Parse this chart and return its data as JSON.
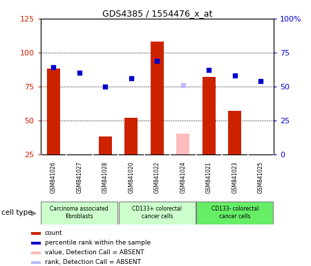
{
  "title": "GDS4385 / 1554476_x_at",
  "samples": [
    "GSM841026",
    "GSM841027",
    "GSM841028",
    "GSM841020",
    "GSM841022",
    "GSM841024",
    "GSM841021",
    "GSM841023",
    "GSM841025"
  ],
  "count_values": [
    88,
    null,
    38,
    52,
    108,
    null,
    82,
    57,
    null
  ],
  "count_absent": [
    null,
    null,
    null,
    null,
    null,
    40,
    null,
    null,
    null
  ],
  "rank_values": [
    64,
    60,
    50,
    56,
    69,
    null,
    62,
    58,
    54
  ],
  "rank_absent": [
    null,
    null,
    null,
    null,
    null,
    51,
    null,
    null,
    null
  ],
  "groups": [
    {
      "label": "Carcinoma associated\nfibroblasts",
      "start": 0,
      "end": 3,
      "color": "#ccffcc"
    },
    {
      "label": "CD133+ colorectal\ncancer cells",
      "start": 3,
      "end": 6,
      "color": "#ccffcc"
    },
    {
      "label": "CD133- colorectal\ncancer cells",
      "start": 6,
      "end": 9,
      "color": "#66ee66"
    }
  ],
  "ylim_left": [
    25,
    125
  ],
  "ylim_right": [
    0,
    100
  ],
  "yticks_left": [
    25,
    50,
    75,
    100,
    125
  ],
  "yticks_right": [
    0,
    25,
    50,
    75,
    100
  ],
  "ytick_labels_right": [
    "0",
    "25",
    "50",
    "75",
    "100%"
  ],
  "bar_width": 0.5,
  "count_color": "#cc2200",
  "rank_color": "#0000cc",
  "absent_count_color": "#ffbbbb",
  "absent_rank_color": "#bbbbff",
  "sample_bg_color": "#d8d8d8",
  "plot_bg": "#ffffff",
  "cell_type_label": "cell type",
  "legend_items": [
    {
      "color": "#cc2200",
      "label": "count"
    },
    {
      "color": "#0000cc",
      "label": "percentile rank within the sample"
    },
    {
      "color": "#ffbbbb",
      "label": "value, Detection Call = ABSENT"
    },
    {
      "color": "#bbbbff",
      "label": "rank, Detection Call = ABSENT"
    }
  ]
}
